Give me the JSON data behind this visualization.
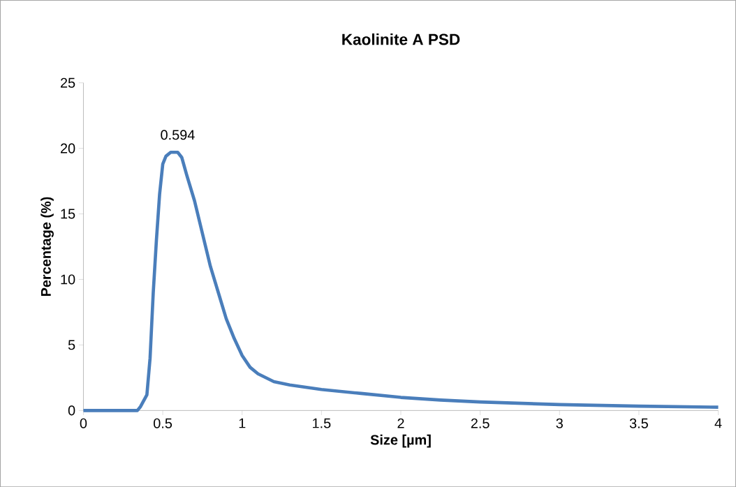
{
  "chart_data": {
    "type": "line",
    "title": "Kaolinite A PSD",
    "xlabel": "Size [µm]",
    "ylabel": "Percentage (%)",
    "x": [
      0,
      0.1,
      0.2,
      0.3,
      0.34,
      0.36,
      0.4,
      0.42,
      0.44,
      0.46,
      0.48,
      0.5,
      0.52,
      0.55,
      0.594,
      0.62,
      0.65,
      0.7,
      0.75,
      0.8,
      0.85,
      0.9,
      0.95,
      1.0,
      1.05,
      1.1,
      1.2,
      1.3,
      1.5,
      1.75,
      2,
      2.25,
      2.5,
      3,
      3.5,
      4
    ],
    "series": [
      {
        "color": "#4a7ebb",
        "values": [
          0,
          0,
          0,
          0,
          0,
          0.3,
          1.2,
          4,
          9,
          13,
          16.5,
          18.8,
          19.4,
          19.7,
          19.7,
          19.3,
          18,
          16,
          13.5,
          11,
          9,
          7,
          5.5,
          4.2,
          3.3,
          2.8,
          2.2,
          1.95,
          1.6,
          1.3,
          1.0,
          0.8,
          0.65,
          0.45,
          0.33,
          0.25
        ]
      }
    ],
    "annotations": [
      {
        "text": "0.594",
        "x": 0.594,
        "y": 19.7
      }
    ],
    "xlim": [
      0,
      4
    ],
    "xticks": [
      0,
      0.5,
      1,
      1.5,
      2,
      2.5,
      3,
      3.5,
      4
    ],
    "ylim": [
      0,
      25
    ],
    "yticks": [
      0,
      5,
      10,
      15,
      20,
      25
    ],
    "grid": false,
    "marker": "none",
    "line_style": "solid"
  }
}
